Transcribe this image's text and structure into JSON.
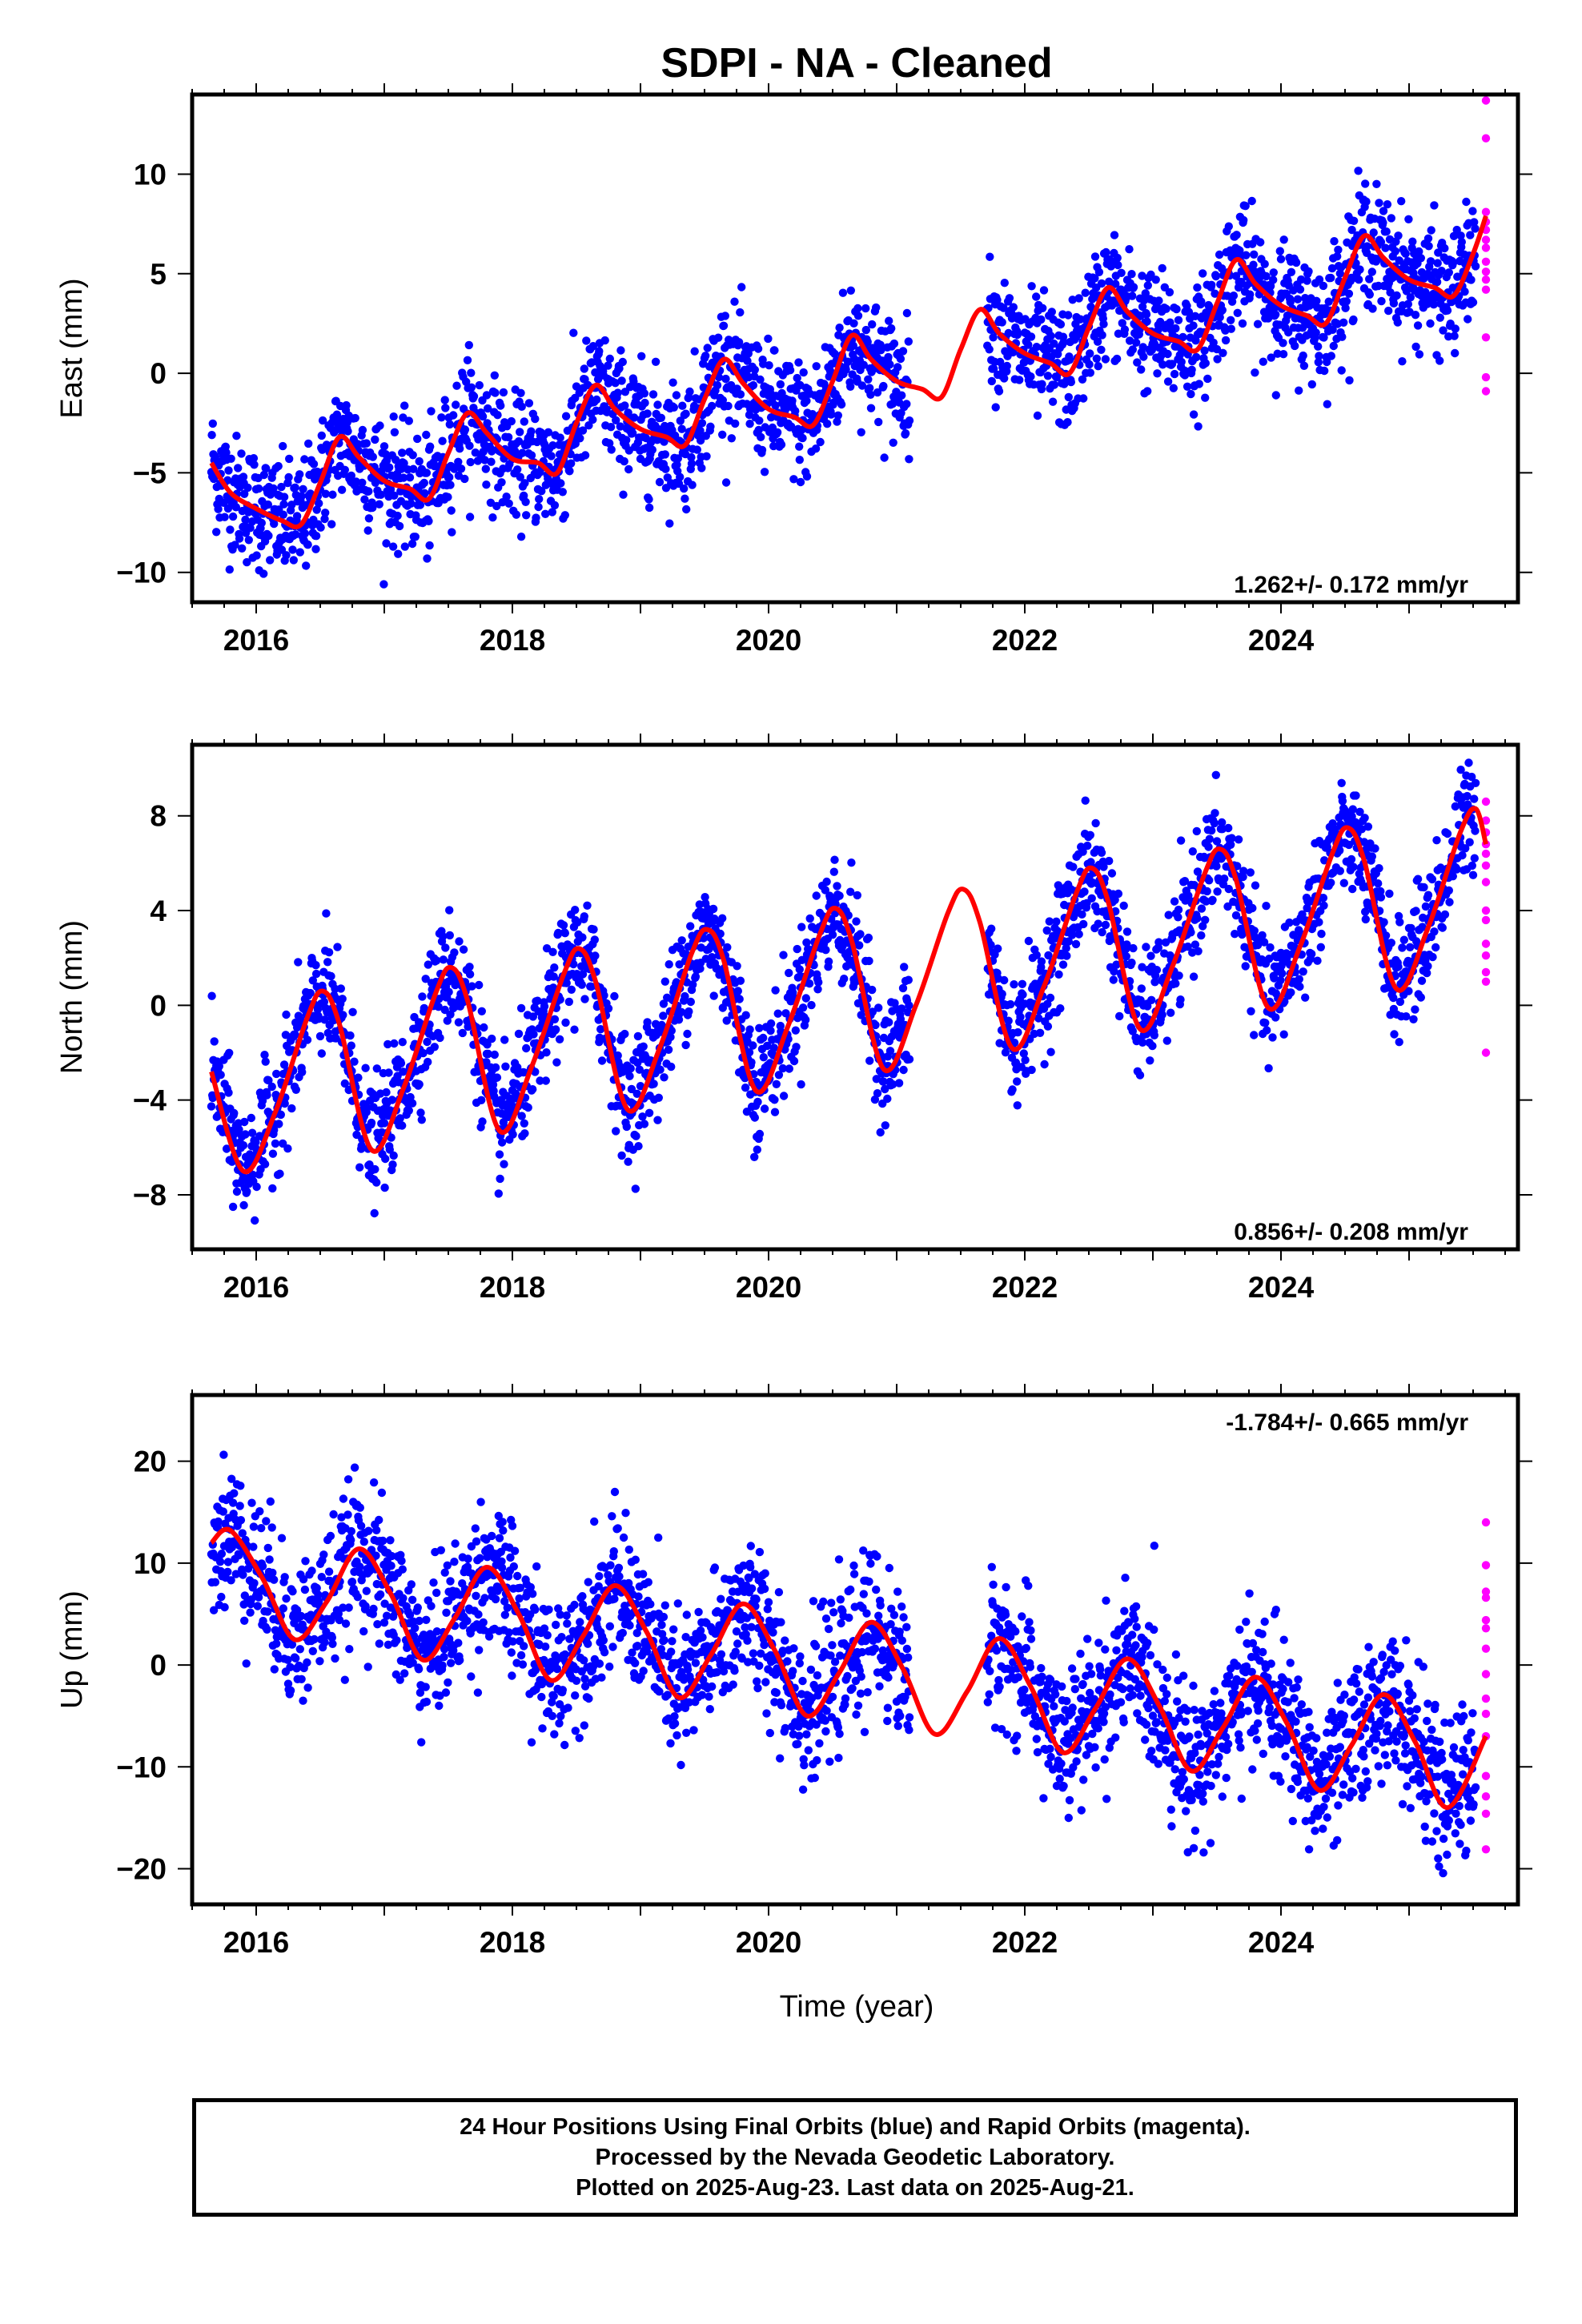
{
  "title": "SDPI  - NA - Cleaned",
  "x_label": "Time (year)",
  "footer": {
    "line1": "24 Hour Positions Using Final Orbits (blue) and Rapid Orbits (magenta).",
    "line2": "Processed by the Nevada Geodetic Laboratory.",
    "line3": "Plotted on 2025-Aug-23. Last data on 2025-Aug-21."
  },
  "colors": {
    "final_orbits": "#0000ff",
    "rapid_orbits": "#ff00ff",
    "model_curve": "#ff0000",
    "frame": "#000000"
  },
  "chart_data": [
    {
      "type": "scatter",
      "ylabel": "East (mm)",
      "rate_text": "1.262+/- 0.172 mm/yr",
      "xlim": [
        2015.5,
        2025.85
      ],
      "ylim": [
        -11.5,
        14
      ],
      "x_ticks": [
        2016,
        2018,
        2020,
        2022,
        2024
      ],
      "y_ticks": [
        -10,
        -5,
        0,
        5,
        10
      ],
      "data_gap": [
        2021.1,
        2021.7
      ],
      "rapid_x": 2025.6,
      "rapid_values": [
        13.7,
        11.8,
        8.1,
        7.6,
        7.2,
        6.7,
        6.3,
        5.6,
        5.1,
        4.7,
        4.2,
        1.8,
        -0.2,
        -0.9
      ],
      "series": [
        {
          "name": "Final Orbits",
          "points": "~2600 daily positions, 2015.65–2025.52, following the model curve with ~1.5 mm scatter"
        },
        {
          "name": "Model",
          "x": [
            2015.65,
            2015.8,
            2016.0,
            2016.2,
            2016.35,
            2016.5,
            2016.65,
            2016.8,
            2017.0,
            2017.2,
            2017.35,
            2017.5,
            2017.65,
            2017.8,
            2018.0,
            2018.2,
            2018.35,
            2018.5,
            2018.65,
            2018.8,
            2019.0,
            2019.2,
            2019.35,
            2019.5,
            2019.65,
            2019.8,
            2020.0,
            2020.2,
            2020.35,
            2020.5,
            2020.65,
            2020.8,
            2021.0,
            2021.2,
            2021.35,
            2021.5,
            2021.65,
            2021.8,
            2022.0,
            2022.2,
            2022.35,
            2022.5,
            2022.65,
            2022.8,
            2023.0,
            2023.2,
            2023.35,
            2023.5,
            2023.65,
            2023.8,
            2024.0,
            2024.2,
            2024.35,
            2024.5,
            2024.65,
            2024.8,
            2025.0,
            2025.2,
            2025.35,
            2025.5,
            2025.6
          ],
          "y": [
            -4.5,
            -6.0,
            -6.8,
            -7.4,
            -7.6,
            -5.5,
            -3.2,
            -4.2,
            -5.4,
            -5.8,
            -6.3,
            -4.0,
            -2.0,
            -3.0,
            -4.3,
            -4.5,
            -5.0,
            -2.5,
            -0.6,
            -1.8,
            -2.8,
            -3.2,
            -3.6,
            -1.3,
            0.7,
            -0.5,
            -1.8,
            -2.2,
            -2.6,
            -0.4,
            1.9,
            0.7,
            -0.4,
            -0.8,
            -1.2,
            1.2,
            3.2,
            2.0,
            1.0,
            0.5,
            0.0,
            2.3,
            4.3,
            3.1,
            2.0,
            1.6,
            1.2,
            3.5,
            5.7,
            4.5,
            3.4,
            2.9,
            2.5,
            4.8,
            6.9,
            5.8,
            4.7,
            4.3,
            3.9,
            6.0,
            7.9
          ]
        }
      ]
    },
    {
      "type": "scatter",
      "ylabel": "North (mm)",
      "rate_text": "0.856+/- 0.208 mm/yr",
      "xlim": [
        2015.5,
        2025.85
      ],
      "ylim": [
        -10.3,
        11
      ],
      "x_ticks": [
        2016,
        2018,
        2020,
        2022,
        2024
      ],
      "y_ticks": [
        -8,
        -4,
        0,
        4,
        8
      ],
      "data_gap": [
        2021.1,
        2021.7
      ],
      "rapid_x": 2025.6,
      "rapid_values": [
        8.6,
        7.8,
        7.3,
        6.8,
        6.4,
        5.9,
        5.2,
        4.0,
        3.6,
        2.6,
        2.1,
        1.4,
        1.0,
        -2.0
      ],
      "series": [
        {
          "name": "Final Orbits",
          "points": "~2600 daily positions, 2015.65–2025.52, following the model curve with ~1.2 mm scatter"
        },
        {
          "name": "Model",
          "x": [
            2015.65,
            2015.9,
            2016.15,
            2016.4,
            2016.52,
            2016.65,
            2016.9,
            2017.15,
            2017.4,
            2017.52,
            2017.65,
            2017.9,
            2018.15,
            2018.4,
            2018.52,
            2018.65,
            2018.9,
            2019.15,
            2019.4,
            2019.52,
            2019.65,
            2019.9,
            2020.15,
            2020.4,
            2020.52,
            2020.65,
            2020.9,
            2021.15,
            2021.4,
            2021.52,
            2021.65,
            2021.9,
            2022.15,
            2022.4,
            2022.52,
            2022.65,
            2022.9,
            2023.15,
            2023.4,
            2023.52,
            2023.65,
            2023.9,
            2024.15,
            2024.4,
            2024.52,
            2024.65,
            2024.9,
            2025.15,
            2025.4,
            2025.52,
            2025.6
          ],
          "y": [
            -2.8,
            -7.0,
            -4.5,
            -0.5,
            0.6,
            -0.8,
            -6.1,
            -3.5,
            0.5,
            1.6,
            0.2,
            -5.3,
            -2.6,
            1.3,
            2.4,
            1.0,
            -4.4,
            -1.8,
            2.2,
            3.2,
            1.9,
            -3.6,
            -0.9,
            3.0,
            4.1,
            2.7,
            -2.7,
            0.0,
            3.9,
            4.9,
            3.5,
            -1.8,
            0.8,
            4.7,
            5.8,
            4.4,
            -1.0,
            1.6,
            5.5,
            6.6,
            5.3,
            -0.1,
            2.5,
            6.4,
            7.5,
            6.1,
            0.7,
            3.3,
            7.3,
            8.3,
            6.8
          ]
        }
      ]
    },
    {
      "type": "scatter",
      "ylabel": "Up (mm)",
      "rate_text": "-1.784+/- 0.665 mm/yr",
      "xlim": [
        2015.5,
        2025.85
      ],
      "ylim": [
        -23.5,
        26.5
      ],
      "x_ticks": [
        2016,
        2018,
        2020,
        2022,
        2024
      ],
      "y_ticks": [
        -20,
        -10,
        0,
        10,
        20
      ],
      "data_gap": [
        2021.1,
        2021.7
      ],
      "rapid_x": 2025.6,
      "rapid_values": [
        14.0,
        9.8,
        7.2,
        6.6,
        4.4,
        3.6,
        1.6,
        -0.9,
        -3.3,
        -4.8,
        -7.0,
        -10.9,
        -12.9,
        -14.6,
        -18.1
      ],
      "series": [
        {
          "name": "Final Orbits",
          "points": "~2600 daily positions, 2015.65–2025.52, following the model curve with ~3.5 mm scatter"
        },
        {
          "name": "Model",
          "x": [
            2015.65,
            2015.8,
            2016.05,
            2016.3,
            2016.55,
            2016.8,
            2017.05,
            2017.3,
            2017.55,
            2017.8,
            2018.05,
            2018.3,
            2018.55,
            2018.8,
            2019.05,
            2019.3,
            2019.55,
            2019.8,
            2020.05,
            2020.3,
            2020.55,
            2020.8,
            2021.05,
            2021.3,
            2021.55,
            2021.8,
            2022.05,
            2022.3,
            2022.55,
            2022.8,
            2023.05,
            2023.3,
            2023.55,
            2023.8,
            2024.05,
            2024.3,
            2024.55,
            2024.8,
            2025.05,
            2025.3,
            2025.6
          ],
          "y": [
            12.0,
            13.2,
            8.5,
            2.5,
            6.2,
            11.4,
            7.0,
            0.5,
            4.6,
            9.6,
            5.0,
            -1.5,
            2.8,
            7.8,
            3.2,
            -3.2,
            1.0,
            6.0,
            1.4,
            -5.0,
            -0.8,
            4.2,
            -0.4,
            -6.8,
            -2.6,
            2.6,
            -2.2,
            -8.6,
            -4.3,
            0.6,
            -4.0,
            -10.4,
            -6.1,
            -1.2,
            -5.8,
            -12.3,
            -7.9,
            -2.9,
            -7.6,
            -14.0,
            -7.0
          ]
        }
      ]
    }
  ]
}
